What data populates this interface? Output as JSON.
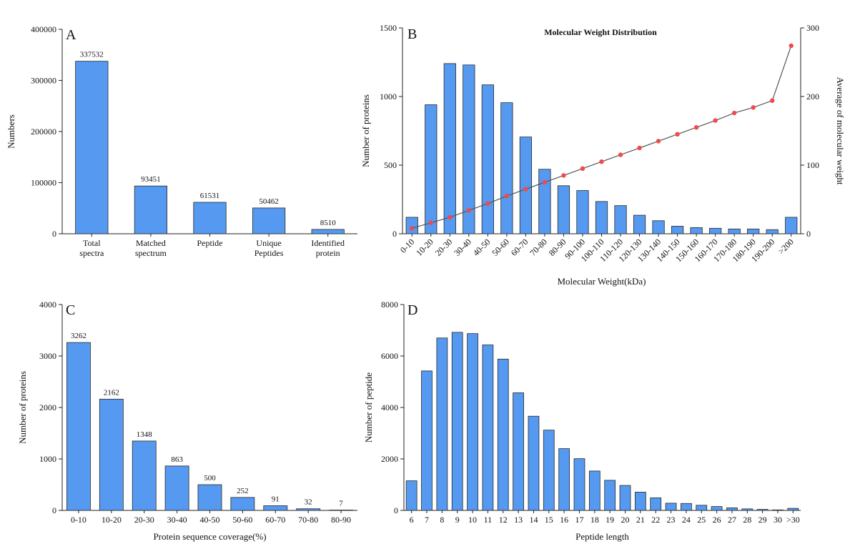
{
  "chart_data": [
    {
      "panel": "A",
      "type": "bar",
      "title": "",
      "xlabel": "",
      "ylabel": "Numbers",
      "ylim": [
        0,
        400000
      ],
      "yticks": [
        "0",
        "100000",
        "200000",
        "300000",
        "400000"
      ],
      "categories": [
        [
          "Total",
          "spectra"
        ],
        [
          "Matched",
          "spectrum"
        ],
        [
          "Peptide"
        ],
        [
          "Unique",
          "Peptides"
        ],
        [
          "Identified",
          "protein"
        ]
      ],
      "values": [
        337532,
        93451,
        61531,
        50462,
        8510
      ],
      "data_labels": [
        "337532",
        "93451",
        "61531",
        "50462",
        "8510"
      ],
      "color": "#5599f0"
    },
    {
      "panel": "B",
      "type": "bar",
      "title": "Molecular Weight Distribution",
      "xlabel": "Molecular Weight(kDa)",
      "ylabel": "Number of proteins",
      "y2label": "Average of molecular weight",
      "ylim": [
        0,
        1500
      ],
      "y2lim": [
        0,
        300
      ],
      "yticks": [
        "0",
        "500",
        "1000",
        "1500"
      ],
      "y2ticks": [
        "0",
        "100",
        "200",
        "300"
      ],
      "categories": [
        "0-10",
        "10-20",
        "20-30",
        "30-40",
        "40-50",
        "50-60",
        "60-70",
        "70-80",
        "80-90",
        "90-100",
        "100-110",
        "110-120",
        "120-130",
        "130-140",
        "140-150",
        "150-160",
        "160-170",
        "170-180",
        "180-190",
        "190-200",
        ">200"
      ],
      "values": [
        120,
        940,
        1240,
        1230,
        1085,
        955,
        705,
        470,
        350,
        315,
        235,
        205,
        135,
        95,
        55,
        45,
        40,
        35,
        35,
        30,
        120
      ],
      "line_values": [
        8,
        16,
        24,
        34,
        44,
        55,
        65,
        75,
        85,
        95,
        105,
        115,
        125,
        135,
        145,
        155,
        165,
        176,
        184,
        194,
        274
      ],
      "color": "#5599f0",
      "line_color": "#555555",
      "marker_color": "#f24a4a"
    },
    {
      "panel": "C",
      "type": "bar",
      "title": "",
      "xlabel": "Protein sequence coverage(%)",
      "ylabel": "Number of proteins",
      "ylim": [
        0,
        4000
      ],
      "yticks": [
        "0",
        "1000",
        "2000",
        "3000",
        "4000"
      ],
      "categories": [
        "0-10",
        "10-20",
        "20-30",
        "30-40",
        "40-50",
        "50-60",
        "60-70",
        "70-80",
        "80-90"
      ],
      "values": [
        3262,
        2162,
        1348,
        863,
        500,
        252,
        91,
        32,
        7
      ],
      "data_labels": [
        "3262",
        "2162",
        "1348",
        "863",
        "500",
        "252",
        "91",
        "32",
        "7"
      ],
      "color": "#5599f0"
    },
    {
      "panel": "D",
      "type": "bar",
      "title": "",
      "xlabel": "Peptide length",
      "ylabel": "Number of peptide",
      "ylim": [
        0,
        8000
      ],
      "yticks": [
        "0",
        "2000",
        "4000",
        "6000",
        "8000"
      ],
      "categories": [
        "6",
        "7",
        "8",
        "9",
        "10",
        "11",
        "12",
        "13",
        "14",
        "15",
        "16",
        "17",
        "18",
        "19",
        "20",
        "21",
        "22",
        "23",
        "24",
        "25",
        "26",
        "27",
        "28",
        "29",
        "30",
        ">30"
      ],
      "values": [
        1150,
        5420,
        6700,
        6920,
        6870,
        6430,
        5880,
        4570,
        3660,
        3120,
        2400,
        2010,
        1530,
        1170,
        970,
        710,
        490,
        280,
        270,
        200,
        150,
        100,
        60,
        40,
        20,
        80
      ],
      "color": "#5599f0"
    }
  ]
}
